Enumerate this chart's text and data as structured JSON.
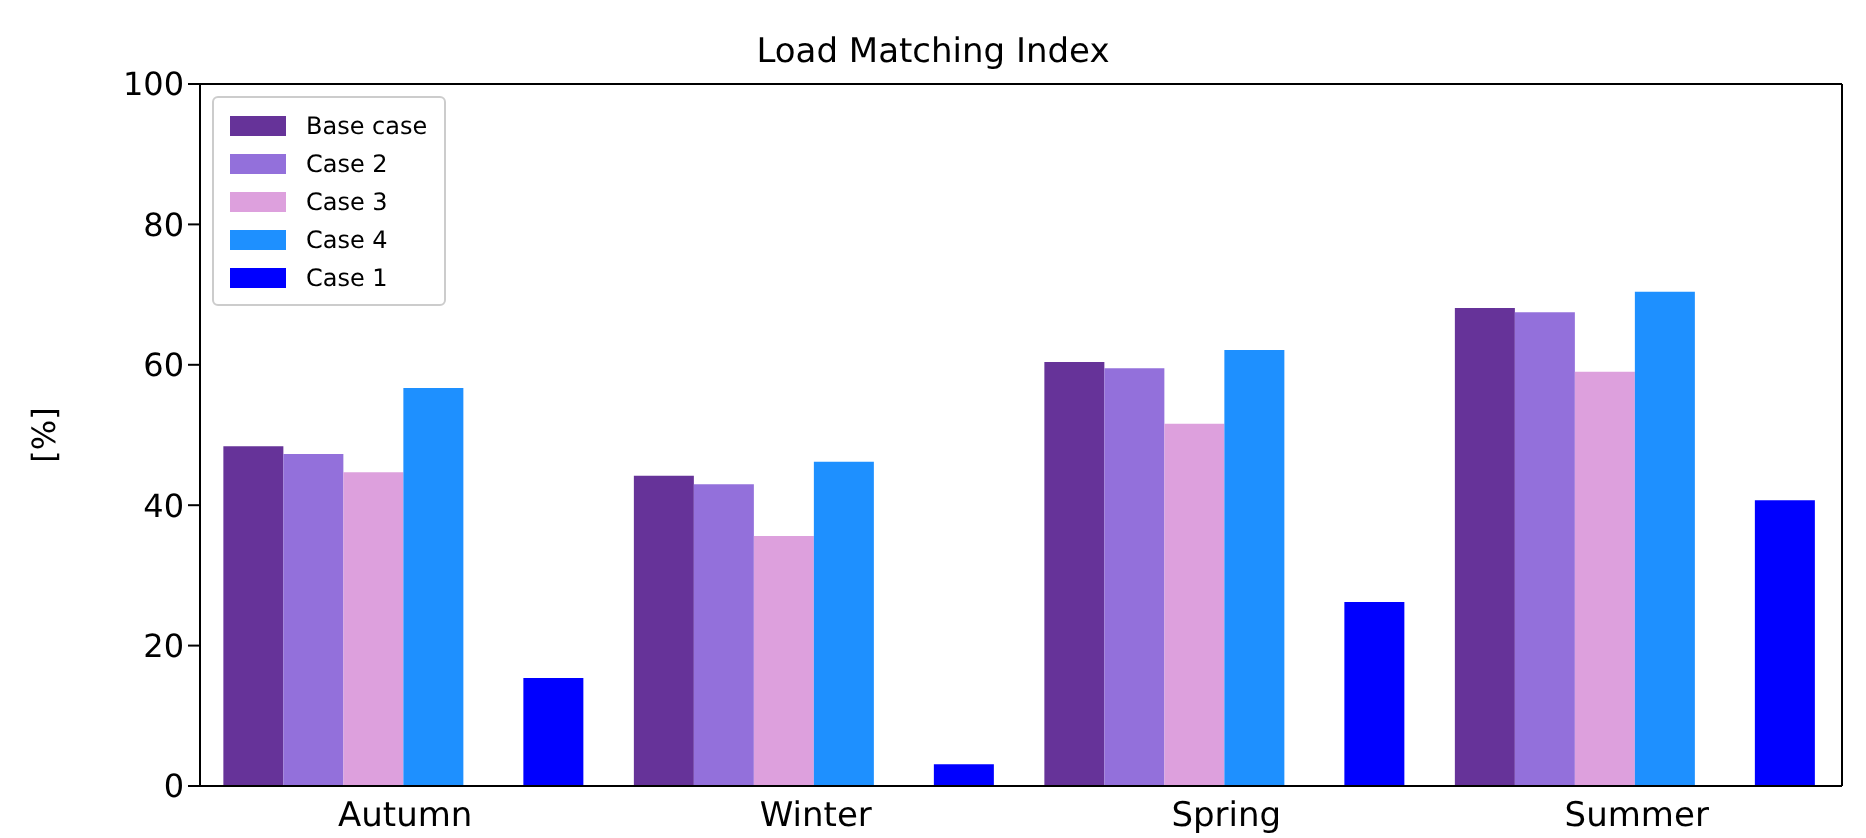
{
  "chart_data": {
    "type": "bar",
    "title": "Load Matching Index",
    "ylabel": "[%]",
    "categories": [
      "Autumn",
      "Winter",
      "Spring",
      "Summer"
    ],
    "series": [
      {
        "name": "Base case",
        "color": "#663399",
        "values": [
          48.4,
          44.2,
          60.4,
          68.1
        ]
      },
      {
        "name": "Case 2",
        "color": "#9370db",
        "values": [
          47.3,
          43.0,
          59.5,
          67.5
        ]
      },
      {
        "name": "Case 3",
        "color": "#dda0dd",
        "values": [
          44.7,
          35.6,
          51.6,
          59.0
        ]
      },
      {
        "name": "Case 4",
        "color": "#1e90ff",
        "values": [
          56.7,
          46.2,
          62.1,
          70.4
        ]
      },
      {
        "name": "Case 1",
        "color": "#0000ff",
        "values": [
          15.4,
          3.1,
          26.2,
          40.7
        ]
      }
    ],
    "ylim": [
      0,
      100
    ],
    "yticks": [
      0,
      20,
      40,
      60,
      80,
      100
    ],
    "grid": false,
    "legend": "top left"
  }
}
